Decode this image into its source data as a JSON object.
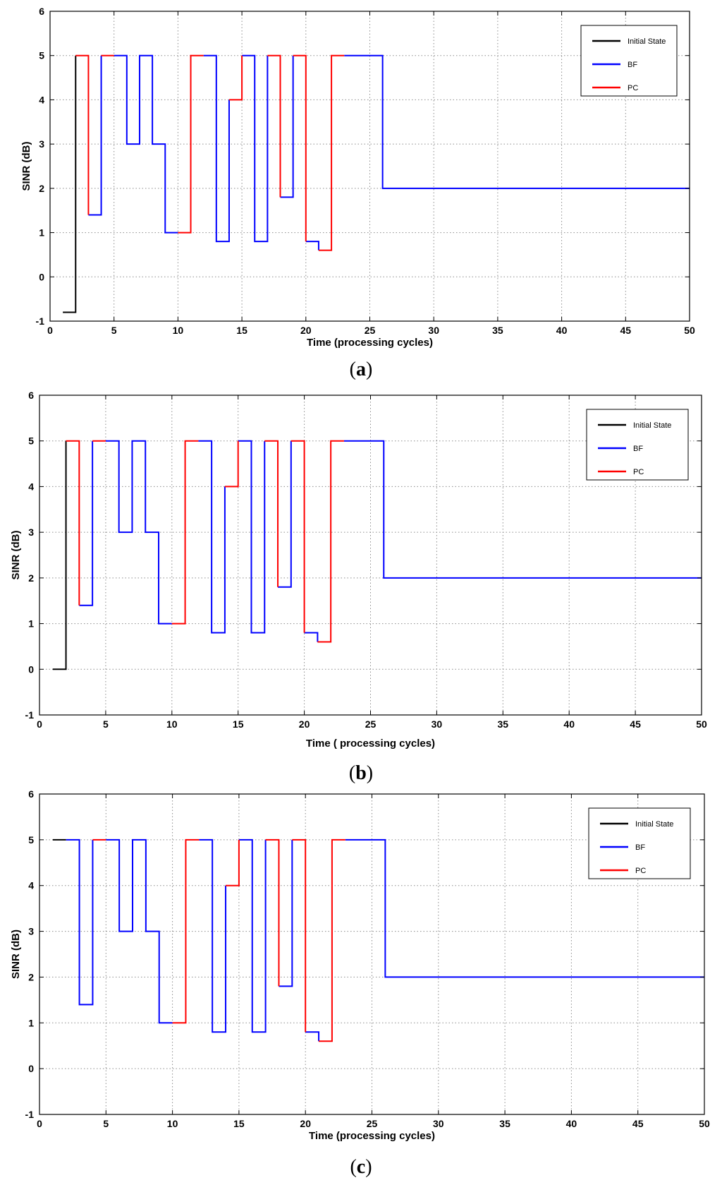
{
  "colors": {
    "initial": "#000000",
    "bf": "#0000ff",
    "pc": "#ff0000",
    "grid": "#8c8c8c",
    "axes": "#000000"
  },
  "chart_data": [
    {
      "type": "line",
      "caption": "a",
      "xlabel": "Time (processing cycles)",
      "ylabel": "SINR (dB)",
      "xlim": [
        0,
        50
      ],
      "ylim": [
        -1,
        6
      ],
      "xticks": [
        0,
        5,
        10,
        15,
        20,
        25,
        30,
        35,
        40,
        45,
        50
      ],
      "yticks": [
        -1,
        0,
        1,
        2,
        3,
        4,
        5,
        6
      ],
      "grid": true,
      "legend_position": "top-right",
      "legend": [
        "Initial State",
        "BF",
        "PC"
      ],
      "series": [
        {
          "name": "Initial State",
          "segments": [
            [
              [
                1,
                -0.8
              ],
              [
                2,
                -0.8
              ],
              [
                2,
                5
              ]
            ]
          ]
        },
        {
          "name": "BF",
          "segments": [
            [
              [
                3,
                1.4
              ],
              [
                4,
                1.4
              ],
              [
                4,
                5
              ]
            ],
            [
              [
                5,
                5
              ],
              [
                6,
                5
              ],
              [
                6,
                3
              ],
              [
                7,
                3
              ],
              [
                7,
                5
              ],
              [
                8,
                5
              ],
              [
                8,
                3
              ],
              [
                9,
                3
              ],
              [
                9,
                1
              ],
              [
                10,
                1
              ]
            ],
            [
              [
                12,
                5
              ],
              [
                13,
                5
              ],
              [
                13,
                0.8
              ],
              [
                14,
                0.8
              ],
              [
                14,
                4
              ]
            ],
            [
              [
                15,
                5
              ],
              [
                16,
                5
              ],
              [
                16,
                0.8
              ],
              [
                17,
                0.8
              ],
              [
                17,
                5
              ]
            ],
            [
              [
                18,
                1.8
              ],
              [
                19,
                1.8
              ],
              [
                19,
                5
              ]
            ],
            [
              [
                20,
                0.8
              ],
              [
                21,
                0.8
              ],
              [
                21,
                0.6
              ]
            ],
            [
              [
                23,
                5
              ],
              [
                26,
                5
              ],
              [
                26,
                2
              ],
              [
                50,
                2
              ]
            ]
          ]
        },
        {
          "name": "PC",
          "segments": [
            [
              [
                2,
                5
              ],
              [
                3,
                5
              ],
              [
                3,
                1.4
              ]
            ],
            [
              [
                4,
                5
              ],
              [
                5,
                5
              ]
            ],
            [
              [
                10,
                1
              ],
              [
                11,
                1
              ],
              [
                11,
                5
              ],
              [
                12,
                5
              ]
            ],
            [
              [
                14,
                4
              ],
              [
                15,
                4
              ],
              [
                15,
                5
              ]
            ],
            [
              [
                17,
                5
              ],
              [
                18,
                5
              ],
              [
                18,
                1.8
              ]
            ],
            [
              [
                19,
                5
              ],
              [
                20,
                5
              ],
              [
                20,
                0.8
              ]
            ],
            [
              [
                21,
                0.6
              ],
              [
                22,
                0.6
              ],
              [
                22,
                5
              ],
              [
                23,
                5
              ]
            ]
          ]
        }
      ]
    },
    {
      "type": "line",
      "caption": "b",
      "xlabel": "Time ( processing cycles)",
      "ylabel": "SINR (dB)",
      "xlim": [
        0,
        50
      ],
      "ylim": [
        -1,
        6
      ],
      "xticks": [
        0,
        5,
        10,
        15,
        20,
        25,
        30,
        35,
        40,
        45,
        50
      ],
      "yticks": [
        -1,
        0,
        1,
        2,
        3,
        4,
        5,
        6
      ],
      "grid": true,
      "legend_position": "top-right",
      "legend": [
        "Initial State",
        "BF",
        "PC"
      ],
      "series": [
        {
          "name": "Initial State",
          "segments": [
            [
              [
                1,
                0
              ],
              [
                2,
                0
              ],
              [
                2,
                5
              ]
            ]
          ]
        },
        {
          "name": "BF",
          "segments": [
            [
              [
                3,
                1.4
              ],
              [
                4,
                1.4
              ],
              [
                4,
                5
              ]
            ],
            [
              [
                5,
                5
              ],
              [
                6,
                5
              ],
              [
                6,
                3
              ],
              [
                7,
                3
              ],
              [
                7,
                5
              ],
              [
                8,
                5
              ],
              [
                8,
                3
              ],
              [
                9,
                3
              ],
              [
                9,
                1
              ],
              [
                10,
                1
              ]
            ],
            [
              [
                12,
                5
              ],
              [
                13,
                5
              ],
              [
                13,
                0.8
              ],
              [
                14,
                0.8
              ],
              [
                14,
                4
              ]
            ],
            [
              [
                15,
                5
              ],
              [
                16,
                5
              ],
              [
                16,
                0.8
              ],
              [
                17,
                0.8
              ],
              [
                17,
                5
              ]
            ],
            [
              [
                18,
                1.8
              ],
              [
                19,
                1.8
              ],
              [
                19,
                5
              ]
            ],
            [
              [
                20,
                0.8
              ],
              [
                21,
                0.8
              ],
              [
                21,
                0.6
              ]
            ],
            [
              [
                23,
                5
              ],
              [
                26,
                5
              ],
              [
                26,
                2
              ],
              [
                50,
                2
              ]
            ]
          ]
        },
        {
          "name": "PC",
          "segments": [
            [
              [
                2,
                5
              ],
              [
                3,
                5
              ],
              [
                3,
                1.4
              ]
            ],
            [
              [
                4,
                5
              ],
              [
                5,
                5
              ]
            ],
            [
              [
                10,
                1
              ],
              [
                11,
                1
              ],
              [
                11,
                5
              ],
              [
                12,
                5
              ]
            ],
            [
              [
                14,
                4
              ],
              [
                15,
                4
              ],
              [
                15,
                5
              ]
            ],
            [
              [
                17,
                5
              ],
              [
                18,
                5
              ],
              [
                18,
                1.8
              ]
            ],
            [
              [
                19,
                5
              ],
              [
                20,
                5
              ],
              [
                20,
                0.8
              ]
            ],
            [
              [
                21,
                0.6
              ],
              [
                22,
                0.6
              ],
              [
                22,
                5
              ],
              [
                23,
                5
              ]
            ]
          ]
        }
      ]
    },
    {
      "type": "line",
      "caption": "c",
      "xlabel": "Time (processing cycles)",
      "ylabel": "SINR (dB)",
      "xlim": [
        0,
        50
      ],
      "ylim": [
        -1,
        6
      ],
      "xticks": [
        0,
        5,
        10,
        15,
        20,
        25,
        30,
        35,
        40,
        45,
        50
      ],
      "yticks": [
        -1,
        0,
        1,
        2,
        3,
        4,
        5,
        6
      ],
      "grid": true,
      "legend_position": "top-right",
      "legend": [
        "Initial State",
        "BF",
        "PC"
      ],
      "series": [
        {
          "name": "Initial State",
          "segments": [
            [
              [
                1,
                5
              ],
              [
                2,
                5
              ]
            ]
          ]
        },
        {
          "name": "BF",
          "segments": [
            [
              [
                2,
                5
              ],
              [
                3,
                5
              ],
              [
                3,
                1.4
              ],
              [
                4,
                1.4
              ],
              [
                4,
                5
              ]
            ],
            [
              [
                5,
                5
              ],
              [
                6,
                5
              ],
              [
                6,
                3
              ],
              [
                7,
                3
              ],
              [
                7,
                5
              ],
              [
                8,
                5
              ],
              [
                8,
                3
              ],
              [
                9,
                3
              ],
              [
                9,
                1
              ],
              [
                10,
                1
              ]
            ],
            [
              [
                12,
                5
              ],
              [
                13,
                5
              ],
              [
                13,
                0.8
              ],
              [
                14,
                0.8
              ],
              [
                14,
                4
              ]
            ],
            [
              [
                15,
                5
              ],
              [
                16,
                5
              ],
              [
                16,
                0.8
              ],
              [
                17,
                0.8
              ],
              [
                17,
                5
              ]
            ],
            [
              [
                18,
                1.8
              ],
              [
                19,
                1.8
              ],
              [
                19,
                5
              ]
            ],
            [
              [
                20,
                0.8
              ],
              [
                21,
                0.8
              ],
              [
                21,
                0.6
              ]
            ],
            [
              [
                23,
                5
              ],
              [
                26,
                5
              ],
              [
                26,
                2
              ],
              [
                50,
                2
              ]
            ]
          ]
        },
        {
          "name": "PC",
          "segments": [
            [
              [
                4,
                5
              ],
              [
                5,
                5
              ]
            ],
            [
              [
                10,
                1
              ],
              [
                11,
                1
              ],
              [
                11,
                5
              ],
              [
                12,
                5
              ]
            ],
            [
              [
                14,
                4
              ],
              [
                15,
                4
              ],
              [
                15,
                5
              ]
            ],
            [
              [
                17,
                5
              ],
              [
                18,
                5
              ],
              [
                18,
                1.8
              ]
            ],
            [
              [
                19,
                5
              ],
              [
                20,
                5
              ],
              [
                20,
                0.8
              ]
            ],
            [
              [
                21,
                0.6
              ],
              [
                22,
                0.6
              ],
              [
                22,
                5
              ],
              [
                23,
                5
              ]
            ]
          ]
        }
      ]
    }
  ]
}
